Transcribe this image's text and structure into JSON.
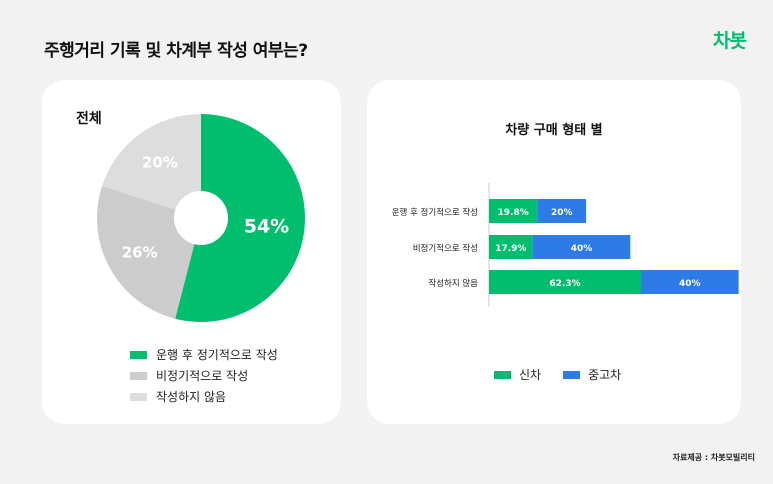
{
  "page": {
    "title": "주행거리 기록 및 차계부 작성 여부는?",
    "logo": "차봇",
    "source": "자료제공 : 차봇모빌리티"
  },
  "colors": {
    "green": "#00be6e",
    "blue": "#2d7be6",
    "gray1": "#cccccc",
    "gray2": "#dddddd",
    "background": "#f2f2f2"
  },
  "chart_data": [
    {
      "type": "pie",
      "title": "전체",
      "donut": true,
      "categories": [
        "운행 후 정기적으로 작성",
        "비정기적으로 작성",
        "작성하지 않음"
      ],
      "values": [
        54,
        26,
        20
      ],
      "labels": [
        "54%",
        "26%",
        "20%"
      ],
      "colors": [
        "#00be6e",
        "#cccccc",
        "#dddddd"
      ],
      "legend": "bottom"
    },
    {
      "type": "bar",
      "orientation": "horizontal",
      "stacked": true,
      "title": "차량 구매 형태 별",
      "categories": [
        "운행 후 정기적으로 작성",
        "비정기적으로 작성",
        "작성하지 않음"
      ],
      "series": [
        {
          "name": "신차",
          "values": [
            19.8,
            17.9,
            62.3
          ],
          "labels": [
            "19.8%",
            "17.9%",
            "62.3%"
          ],
          "color": "#00be6e"
        },
        {
          "name": "중고차",
          "values": [
            20,
            40,
            40
          ],
          "labels": [
            "20%",
            "40%",
            "40%"
          ],
          "color": "#2d7be6"
        }
      ],
      "legend": "bottom"
    }
  ]
}
